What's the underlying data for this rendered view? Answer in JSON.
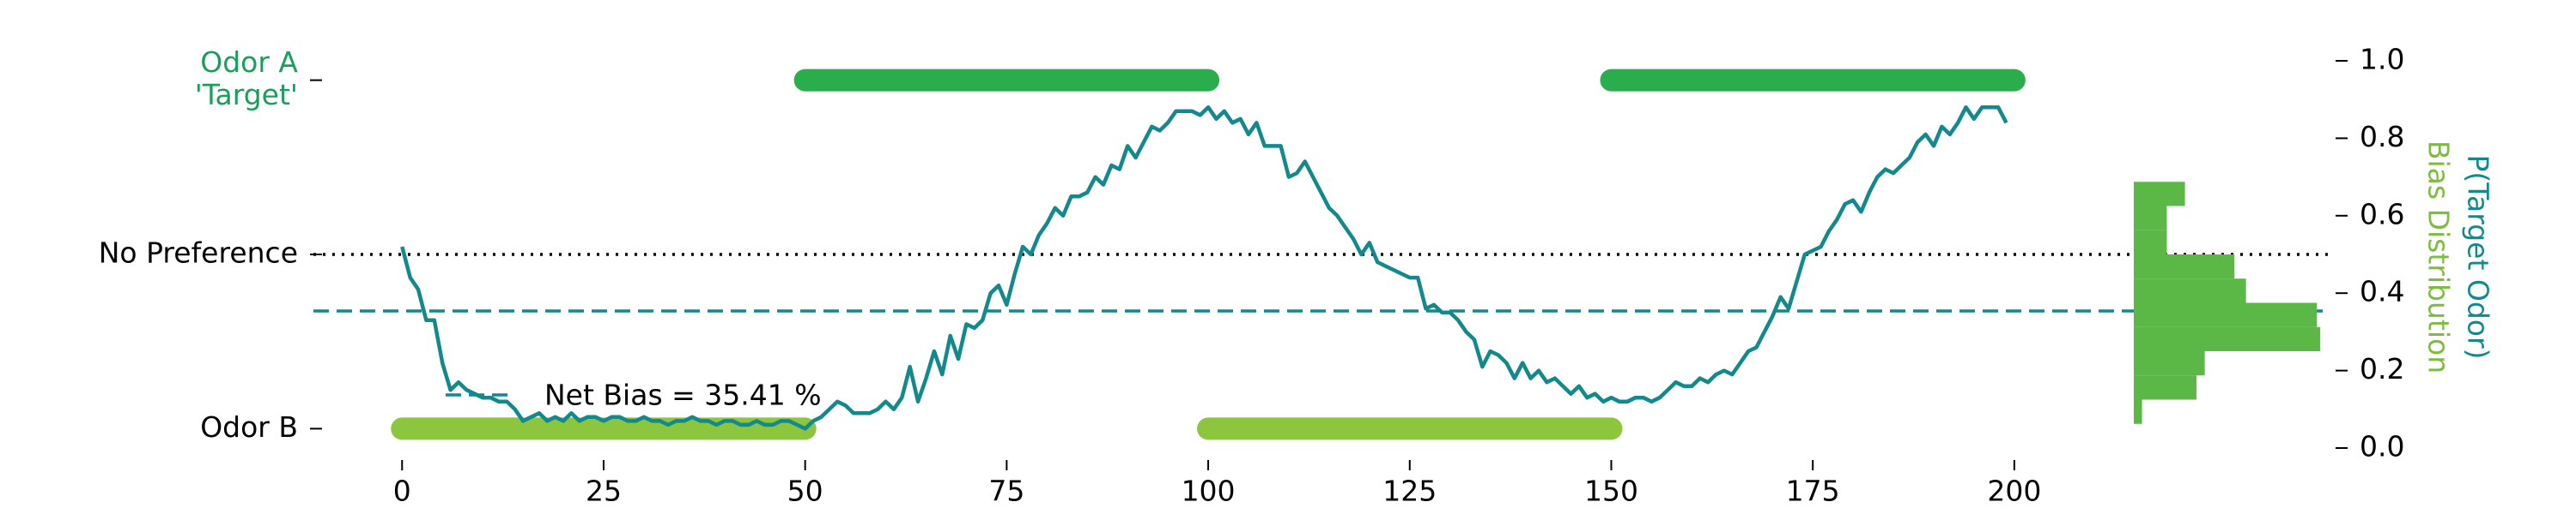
{
  "chart_data": {
    "type": "line",
    "x": [
      0,
      1,
      2,
      3,
      4,
      5,
      6,
      7,
      8,
      9,
      10,
      11,
      12,
      13,
      14,
      15,
      16,
      17,
      18,
      19,
      20,
      21,
      22,
      23,
      24,
      25,
      26,
      27,
      28,
      29,
      30,
      31,
      32,
      33,
      34,
      35,
      36,
      37,
      38,
      39,
      40,
      41,
      42,
      43,
      44,
      45,
      46,
      47,
      48,
      49,
      50,
      51,
      52,
      53,
      54,
      55,
      56,
      57,
      58,
      59,
      60,
      61,
      62,
      63,
      64,
      65,
      66,
      67,
      68,
      69,
      70,
      71,
      72,
      73,
      74,
      75,
      76,
      77,
      78,
      79,
      80,
      81,
      82,
      83,
      84,
      85,
      86,
      87,
      88,
      89,
      90,
      91,
      92,
      93,
      94,
      95,
      96,
      97,
      98,
      99,
      100,
      101,
      102,
      103,
      104,
      105,
      106,
      107,
      108,
      109,
      110,
      111,
      112,
      113,
      114,
      115,
      116,
      117,
      118,
      119,
      120,
      121,
      122,
      123,
      124,
      125,
      126,
      127,
      128,
      129,
      130,
      131,
      132,
      133,
      134,
      135,
      136,
      137,
      138,
      139,
      140,
      141,
      142,
      143,
      144,
      145,
      146,
      147,
      148,
      149,
      150,
      151,
      152,
      153,
      154,
      155,
      156,
      157,
      158,
      159,
      160,
      161,
      162,
      163,
      164,
      165,
      166,
      167,
      168,
      169,
      170,
      171,
      172,
      173,
      174,
      175,
      176,
      177,
      178,
      179,
      180,
      181,
      182,
      183,
      184,
      185,
      186,
      187,
      188,
      189,
      190,
      191,
      192,
      193,
      194,
      195,
      196,
      197,
      198,
      199
    ],
    "series": [
      {
        "name": "P(Target Odor)",
        "color": "#13898e",
        "values": [
          0.52,
          0.44,
          0.41,
          0.33,
          0.33,
          0.22,
          0.15,
          0.17,
          0.15,
          0.14,
          0.13,
          0.13,
          0.12,
          0.12,
          0.1,
          0.07,
          0.08,
          0.09,
          0.07,
          0.08,
          0.07,
          0.09,
          0.07,
          0.08,
          0.08,
          0.07,
          0.08,
          0.08,
          0.07,
          0.07,
          0.08,
          0.07,
          0.07,
          0.06,
          0.07,
          0.07,
          0.08,
          0.07,
          0.07,
          0.06,
          0.07,
          0.07,
          0.06,
          0.06,
          0.07,
          0.06,
          0.06,
          0.07,
          0.07,
          0.06,
          0.05,
          0.07,
          0.08,
          0.1,
          0.12,
          0.11,
          0.09,
          0.09,
          0.09,
          0.1,
          0.12,
          0.1,
          0.13,
          0.21,
          0.12,
          0.18,
          0.25,
          0.19,
          0.29,
          0.23,
          0.32,
          0.31,
          0.33,
          0.4,
          0.42,
          0.37,
          0.45,
          0.52,
          0.5,
          0.55,
          0.58,
          0.62,
          0.6,
          0.65,
          0.65,
          0.66,
          0.7,
          0.68,
          0.73,
          0.72,
          0.78,
          0.75,
          0.79,
          0.83,
          0.82,
          0.84,
          0.87,
          0.87,
          0.87,
          0.86,
          0.88,
          0.85,
          0.87,
          0.84,
          0.85,
          0.81,
          0.84,
          0.78,
          0.78,
          0.78,
          0.7,
          0.71,
          0.74,
          0.7,
          0.66,
          0.62,
          0.6,
          0.57,
          0.54,
          0.5,
          0.53,
          0.48,
          0.47,
          0.46,
          0.45,
          0.44,
          0.44,
          0.36,
          0.37,
          0.35,
          0.35,
          0.33,
          0.3,
          0.28,
          0.21,
          0.25,
          0.24,
          0.22,
          0.18,
          0.22,
          0.18,
          0.2,
          0.17,
          0.18,
          0.16,
          0.14,
          0.16,
          0.13,
          0.14,
          0.12,
          0.13,
          0.12,
          0.12,
          0.13,
          0.13,
          0.12,
          0.13,
          0.15,
          0.17,
          0.16,
          0.16,
          0.18,
          0.17,
          0.19,
          0.2,
          0.19,
          0.22,
          0.25,
          0.26,
          0.3,
          0.34,
          0.39,
          0.36,
          0.43,
          0.5,
          0.51,
          0.52,
          0.56,
          0.59,
          0.63,
          0.64,
          0.61,
          0.66,
          0.7,
          0.72,
          0.71,
          0.73,
          0.75,
          0.79,
          0.81,
          0.78,
          0.83,
          0.81,
          0.84,
          0.88,
          0.85,
          0.88,
          0.88,
          0.88,
          0.84
        ]
      }
    ],
    "xlim": [
      -11,
      239
    ],
    "xticks": [
      0,
      25,
      50,
      75,
      100,
      125,
      150,
      175,
      200
    ],
    "ylim": [
      0,
      1
    ],
    "yticks": [
      {
        "value": 0,
        "label": "0.0"
      },
      {
        "value": 0.2,
        "label": "0.2"
      },
      {
        "value": 0.4,
        "label": "0.4"
      },
      {
        "value": 0.6,
        "label": "0.6"
      },
      {
        "value": 0.8,
        "label": "0.8"
      },
      {
        "value": 1,
        "label": "1.0"
      }
    ],
    "ylabel": "P(Target Odor)",
    "ylabel2": "Bias Distribution",
    "ylabel2_color": "#7dbb42",
    "left_ticks": [
      {
        "value": 0.95,
        "label": [
          "Odor A",
          "'Target'"
        ],
        "color": "#1a9e5a"
      },
      {
        "value": 0.5,
        "label": [
          "No Preference"
        ],
        "color": "#000000"
      },
      {
        "value": 0.05,
        "label": [
          "Odor B"
        ],
        "color": "#000000"
      }
    ],
    "odor_a_blocks": [
      [
        50,
        100
      ],
      [
        150,
        200
      ]
    ],
    "odor_a_color": "#2aad4b",
    "odor_b_blocks": [
      [
        0,
        50
      ],
      [
        100,
        150
      ]
    ],
    "odor_b_color": "#8cc63f",
    "reference_lines": [
      {
        "value": 0.5,
        "style": "dotted",
        "color": "#000000"
      },
      {
        "value": 0.3541,
        "style": "dashed",
        "color": "#13898e",
        "label": "Net Bias = 35.41 %"
      }
    ],
    "histogram": {
      "bins": [
        0.0625,
        0.125,
        0.1875,
        0.25,
        0.3125,
        0.375,
        0.4375,
        0.5,
        0.5625,
        0.625,
        0.6875
      ],
      "counts": [
        5,
        38,
        43,
        113,
        111,
        68,
        61,
        20,
        20,
        31
      ],
      "xlim": [
        0,
        115
      ],
      "color": "#5bb846"
    }
  }
}
